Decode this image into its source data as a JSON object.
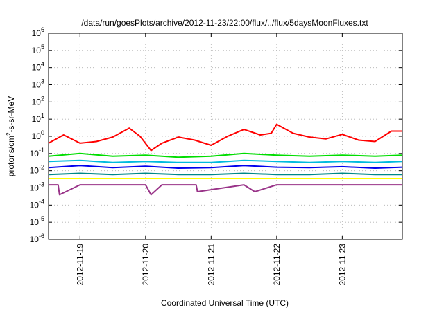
{
  "chart_data": {
    "type": "line",
    "title": "/data/run/goesPlots/archive/2012-11-23/22:00/flux/../flux/5daysMoonFluxes.txt",
    "xlabel": "Coordinated Universal Time (UTC)",
    "ylabel_parts": [
      "protons/cm",
      "2",
      "-s-sr-MeV"
    ],
    "x_range": [
      "2012-11-18 12:30",
      "2012-11-23 22:00"
    ],
    "x_ticks": [
      "2012-11-19",
      "2012-11-20",
      "2012-11-21",
      "2012-11-22",
      "2012-11-23"
    ],
    "y_scale": "log",
    "ylim": [
      1e-06,
      1000000.0
    ],
    "y_ticks": [
      {
        "base": "10",
        "exp": "-6"
      },
      {
        "base": "10",
        "exp": "-5"
      },
      {
        "base": "10",
        "exp": "-4"
      },
      {
        "base": "10",
        "exp": "-3"
      },
      {
        "base": "10",
        "exp": "-2"
      },
      {
        "base": "10",
        "exp": "-1"
      },
      {
        "base": "10",
        "exp": "0"
      },
      {
        "base": "10",
        "exp": "1"
      },
      {
        "base": "10",
        "exp": "2"
      },
      {
        "base": "10",
        "exp": "3"
      },
      {
        "base": "10",
        "exp": "4"
      },
      {
        "base": "10",
        "exp": "5"
      },
      {
        "base": "10",
        "exp": "6"
      }
    ],
    "grid": true,
    "legend": "none",
    "series": [
      {
        "color": "#ff0000",
        "x": [
          "2012-11-18 12:30",
          "2012-11-18 18:00",
          "2012-11-19 00:00",
          "2012-11-19 06:00",
          "2012-11-19 12:00",
          "2012-11-19 18:00",
          "2012-11-19 22:00",
          "2012-11-20 02:00",
          "2012-11-20 06:00",
          "2012-11-20 12:00",
          "2012-11-20 18:00",
          "2012-11-21 00:00",
          "2012-11-21 06:00",
          "2012-11-21 12:00",
          "2012-11-21 18:00",
          "2012-11-21 22:00",
          "2012-11-22 00:00",
          "2012-11-22 06:00",
          "2012-11-22 12:00",
          "2012-11-22 18:00",
          "2012-11-23 00:00",
          "2012-11-23 06:00",
          "2012-11-23 12:00",
          "2012-11-23 18:00",
          "2012-11-23 22:00"
        ],
        "values": [
          0.4,
          1.2,
          0.4,
          0.5,
          0.9,
          3.0,
          1.0,
          0.15,
          0.4,
          0.9,
          0.6,
          0.3,
          1.0,
          2.5,
          1.2,
          1.5,
          5.0,
          1.5,
          0.9,
          0.7,
          1.3,
          0.6,
          0.5,
          2.0,
          2.0
        ]
      },
      {
        "color": "#00dd00",
        "x": [
          "2012-11-18 12:30",
          "2012-11-19 00:00",
          "2012-11-19 12:00",
          "2012-11-20 00:00",
          "2012-11-20 12:00",
          "2012-11-21 00:00",
          "2012-11-21 12:00",
          "2012-11-22 00:00",
          "2012-11-22 12:00",
          "2012-11-23 00:00",
          "2012-11-23 12:00",
          "2012-11-23 22:00"
        ],
        "values": [
          0.07,
          0.1,
          0.07,
          0.08,
          0.06,
          0.07,
          0.1,
          0.08,
          0.07,
          0.08,
          0.07,
          0.08
        ]
      },
      {
        "color": "#00bbdd",
        "x": [
          "2012-11-18 12:30",
          "2012-11-19 00:00",
          "2012-11-19 12:00",
          "2012-11-20 00:00",
          "2012-11-20 12:00",
          "2012-11-21 00:00",
          "2012-11-21 12:00",
          "2012-11-22 00:00",
          "2012-11-22 12:00",
          "2012-11-23 00:00",
          "2012-11-23 12:00",
          "2012-11-23 22:00"
        ],
        "values": [
          0.035,
          0.04,
          0.03,
          0.035,
          0.03,
          0.03,
          0.04,
          0.035,
          0.03,
          0.035,
          0.03,
          0.035
        ]
      },
      {
        "color": "#0000ee",
        "x": [
          "2012-11-18 12:30",
          "2012-11-19 00:00",
          "2012-11-19 12:00",
          "2012-11-20 00:00",
          "2012-11-20 12:00",
          "2012-11-21 00:00",
          "2012-11-21 12:00",
          "2012-11-22 00:00",
          "2012-11-22 12:00",
          "2012-11-23 00:00",
          "2012-11-23 12:00",
          "2012-11-23 22:00"
        ],
        "values": [
          0.015,
          0.02,
          0.015,
          0.018,
          0.014,
          0.015,
          0.02,
          0.016,
          0.015,
          0.017,
          0.014,
          0.016
        ]
      },
      {
        "color": "#008888",
        "x": [
          "2012-11-18 12:30",
          "2012-11-19 00:00",
          "2012-11-19 12:00",
          "2012-11-20 00:00",
          "2012-11-20 12:00",
          "2012-11-21 00:00",
          "2012-11-21 12:00",
          "2012-11-22 00:00",
          "2012-11-22 12:00",
          "2012-11-23 00:00",
          "2012-11-23 12:00",
          "2012-11-23 22:00"
        ],
        "values": [
          0.006,
          0.007,
          0.006,
          0.007,
          0.006,
          0.006,
          0.007,
          0.006,
          0.006,
          0.007,
          0.006,
          0.006
        ]
      },
      {
        "color": "#ffff00",
        "x": [
          "2012-11-18 12:30",
          "2012-11-19 00:00",
          "2012-11-19 12:00",
          "2012-11-20 00:00",
          "2012-11-20 12:00",
          "2012-11-21 00:00",
          "2012-11-21 12:00",
          "2012-11-22 00:00",
          "2012-11-22 12:00",
          "2012-11-23 00:00",
          "2012-11-23 12:00",
          "2012-11-23 22:00"
        ],
        "values": [
          0.0035,
          0.0035,
          0.0035,
          0.0035,
          0.0035,
          0.0035,
          0.0035,
          0.0035,
          0.0035,
          0.0035,
          0.0035,
          0.0035
        ]
      },
      {
        "color": "#993388",
        "x": [
          "2012-11-18 12:30",
          "2012-11-18 16:00",
          "2012-11-18 16:30",
          "2012-11-19 00:00",
          "2012-11-19 12:00",
          "2012-11-19 20:00",
          "2012-11-20 00:00",
          "2012-11-20 02:00",
          "2012-11-20 06:00",
          "2012-11-20 12:00",
          "2012-11-20 18:30",
          "2012-11-20 19:00",
          "2012-11-21 12:00",
          "2012-11-21 16:00",
          "2012-11-22 00:00",
          "2012-11-22 12:00",
          "2012-11-23 00:00",
          "2012-11-23 12:00",
          "2012-11-23 22:00"
        ],
        "values": [
          0.0015,
          0.0015,
          0.0004,
          0.0015,
          0.0015,
          0.0015,
          0.0015,
          0.0004,
          0.0015,
          0.0015,
          0.0015,
          0.0006,
          0.0015,
          0.0006,
          0.0015,
          0.0015,
          0.0015,
          0.0015,
          0.0015
        ]
      }
    ]
  }
}
